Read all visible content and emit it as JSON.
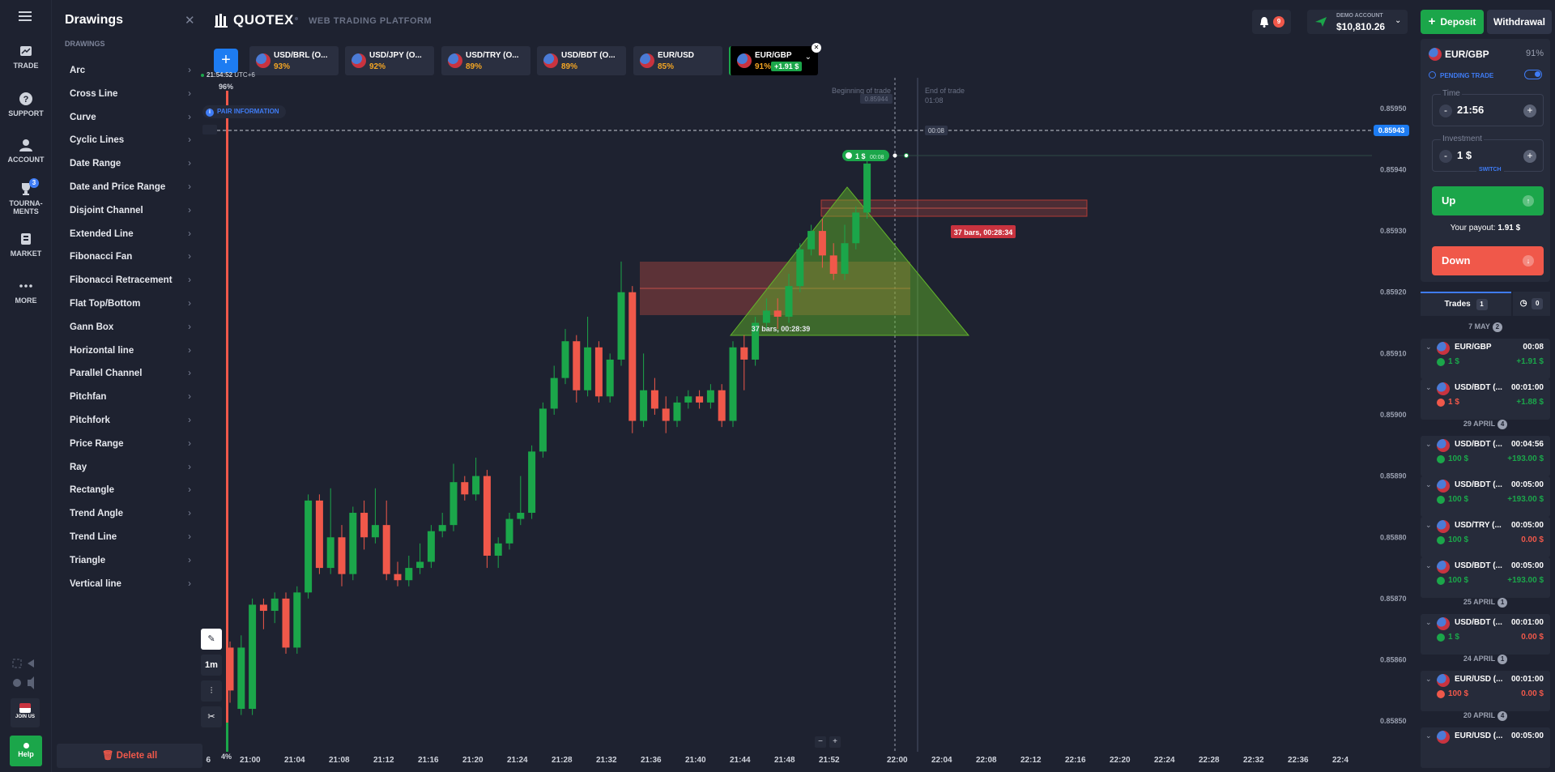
{
  "nav": {
    "trade": "TRADE",
    "support": "SUPPORT",
    "account": "ACCOUNT",
    "tournaments": "TOURNA-\nMENTS",
    "tournaments_badge": "3",
    "market": "MARKET",
    "more": "MORE",
    "join_us": "JOIN US",
    "help": "Help"
  },
  "drawings": {
    "title": "Drawings",
    "subtitle": "Drawings",
    "tools": [
      "Arc",
      "Cross Line",
      "Curve",
      "Cyclic Lines",
      "Date Range",
      "Date and Price Range",
      "Disjoint Channel",
      "Extended Line",
      "Fibonacci Fan",
      "Fibonacci Retracement",
      "Flat Top/Bottom",
      "Gann Box",
      "Horizontal line",
      "Parallel Channel",
      "Pitchfan",
      "Pitchfork",
      "Price Range",
      "Ray",
      "Rectangle",
      "Trend Angle",
      "Trend Line",
      "Triangle",
      "Vertical line"
    ],
    "delete_all": "Delete all"
  },
  "topbar": {
    "logo": "QUOTEX",
    "logo_sub": "WEB TRADING PLATFORM",
    "notifications": "9",
    "account_label": "DEMO ACCOUNT",
    "balance": "$10,810.26",
    "deposit": "Deposit",
    "withdrawal": "Withdrawal"
  },
  "assets": [
    {
      "name": "USD/BRL (O...",
      "pct": "93%"
    },
    {
      "name": "USD/JPY (O...",
      "pct": "92%"
    },
    {
      "name": "USD/TRY (O...",
      "pct": "89%"
    },
    {
      "name": "USD/BDT (O...",
      "pct": "89%"
    },
    {
      "name": "EUR/USD",
      "pct": "85%"
    },
    {
      "name": "EUR/GBP",
      "pct": "91%",
      "gain": "+1.91 $"
    }
  ],
  "chart_info": {
    "clock": "21:54:52",
    "tz": "UTC+6",
    "pair_info": "PAIR INFORMATION",
    "sentiment_top": "96%",
    "sentiment_bottom": "4%",
    "beginning": "Beginning of trade",
    "end": "End of trade",
    "end_time": "01:08",
    "current_price": "0.85943",
    "ghost_price": "0.85944",
    "timer": "00:08",
    "trade_chip": "1 $",
    "trade_chip_time": "00:08",
    "range_label_red": "37 bars, 00:28:34",
    "range_label_green": "37 bars, 00:28:39",
    "timeframe": "1m",
    "zoom_out": "−",
    "zoom_in": "+"
  },
  "chart_data": {
    "type": "candlestick",
    "y_ticks": [
      "0.85950",
      "0.85940",
      "0.85930",
      "0.85920",
      "0.85910",
      "0.85900",
      "0.85890",
      "0.85880",
      "0.85870",
      "0.85860",
      "0.85850"
    ],
    "x_ticks": [
      "56",
      "21:00",
      "21:04",
      "21:08",
      "21:12",
      "21:16",
      "21:20",
      "21:24",
      "21:28",
      "21:32",
      "21:36",
      "21:40",
      "21:44",
      "21:48",
      "21:52",
      "22:00",
      "22:04",
      "22:08",
      "22:12",
      "22:16",
      "22:20",
      "22:24",
      "22:28",
      "22:32",
      "22:36",
      "22:4"
    ],
    "ylim": [
      0.85845,
      0.85955
    ],
    "candles": [
      [
        0.85855,
        0.85862,
        0.85853,
        0.85863,
        0
      ],
      [
        0.85862,
        0.85852,
        0.85851,
        0.85864,
        1
      ],
      [
        0.85852,
        0.85869,
        0.85851,
        0.8587,
        1
      ],
      [
        0.85869,
        0.85868,
        0.85865,
        0.8587,
        0
      ],
      [
        0.85868,
        0.8587,
        0.85866,
        0.85871,
        1
      ],
      [
        0.8587,
        0.85862,
        0.85861,
        0.85871,
        0
      ],
      [
        0.85862,
        0.85871,
        0.85861,
        0.85872,
        1
      ],
      [
        0.85871,
        0.85886,
        0.8587,
        0.85887,
        1
      ],
      [
        0.85886,
        0.85875,
        0.85874,
        0.85887,
        0
      ],
      [
        0.85875,
        0.8588,
        0.85874,
        0.85888,
        1
      ],
      [
        0.8588,
        0.85874,
        0.85872,
        0.85882,
        0
      ],
      [
        0.85874,
        0.85884,
        0.85873,
        0.85885,
        1
      ],
      [
        0.85884,
        0.8588,
        0.85878,
        0.85886,
        0
      ],
      [
        0.8588,
        0.85882,
        0.85879,
        0.85888,
        1
      ],
      [
        0.85882,
        0.85874,
        0.85873,
        0.85886,
        0
      ],
      [
        0.85874,
        0.85873,
        0.85872,
        0.85876,
        0
      ],
      [
        0.85873,
        0.85875,
        0.85872,
        0.85877,
        1
      ],
      [
        0.85875,
        0.85876,
        0.85874,
        0.85879,
        1
      ],
      [
        0.85876,
        0.85881,
        0.85875,
        0.85882,
        1
      ],
      [
        0.85881,
        0.85882,
        0.8588,
        0.85884,
        1
      ],
      [
        0.85882,
        0.85889,
        0.85881,
        0.85892,
        1
      ],
      [
        0.85889,
        0.85887,
        0.85886,
        0.8589,
        0
      ],
      [
        0.85887,
        0.8589,
        0.85886,
        0.85893,
        1
      ],
      [
        0.8589,
        0.85877,
        0.85875,
        0.85891,
        0
      ],
      [
        0.85877,
        0.85879,
        0.85875,
        0.8588,
        1
      ],
      [
        0.85879,
        0.85883,
        0.85878,
        0.85884,
        1
      ],
      [
        0.85883,
        0.85884,
        0.85882,
        0.8589,
        1
      ],
      [
        0.85884,
        0.85894,
        0.85883,
        0.85895,
        1
      ],
      [
        0.85894,
        0.85901,
        0.85893,
        0.85902,
        1
      ],
      [
        0.85901,
        0.85906,
        0.859,
        0.85908,
        1
      ],
      [
        0.85906,
        0.85912,
        0.85905,
        0.85914,
        1
      ],
      [
        0.85912,
        0.85904,
        0.85902,
        0.85913,
        0
      ],
      [
        0.85904,
        0.85911,
        0.85903,
        0.85916,
        1
      ],
      [
        0.85911,
        0.85903,
        0.85902,
        0.85912,
        0
      ],
      [
        0.85903,
        0.85909,
        0.85902,
        0.8591,
        1
      ],
      [
        0.85909,
        0.8592,
        0.85908,
        0.85925,
        1
      ],
      [
        0.8592,
        0.85899,
        0.85897,
        0.85921,
        0
      ],
      [
        0.85899,
        0.85904,
        0.85898,
        0.8591,
        1
      ],
      [
        0.85904,
        0.85901,
        0.859,
        0.85906,
        0
      ],
      [
        0.85901,
        0.85899,
        0.85897,
        0.85903,
        0
      ],
      [
        0.85899,
        0.85902,
        0.85898,
        0.85903,
        1
      ],
      [
        0.85902,
        0.85903,
        0.85901,
        0.85904,
        1
      ],
      [
        0.85903,
        0.85902,
        0.85901,
        0.85904,
        0
      ],
      [
        0.85902,
        0.85904,
        0.85901,
        0.85905,
        1
      ],
      [
        0.85904,
        0.85899,
        0.85898,
        0.85905,
        0
      ],
      [
        0.85899,
        0.85911,
        0.85898,
        0.85912,
        1
      ],
      [
        0.85911,
        0.85909,
        0.85904,
        0.85913,
        0
      ],
      [
        0.85909,
        0.85915,
        0.85908,
        0.85916,
        1
      ],
      [
        0.85915,
        0.85917,
        0.85914,
        0.85919,
        1
      ],
      [
        0.85917,
        0.85916,
        0.85914,
        0.85919,
        0
      ],
      [
        0.85916,
        0.85921,
        0.85915,
        0.85923,
        1
      ],
      [
        0.85921,
        0.85927,
        0.8592,
        0.85928,
        1
      ],
      [
        0.85927,
        0.8593,
        0.85926,
        0.85931,
        1
      ],
      [
        0.8593,
        0.85926,
        0.85924,
        0.85932,
        0
      ],
      [
        0.85926,
        0.85923,
        0.85922,
        0.85928,
        0
      ],
      [
        0.85923,
        0.85928,
        0.85922,
        0.85931,
        1
      ],
      [
        0.85928,
        0.85933,
        0.85927,
        0.85934,
        1
      ],
      [
        0.85933,
        0.85941,
        0.85932,
        0.85942,
        1
      ]
    ]
  },
  "side": {
    "pair": "EUR/GBP",
    "pair_pct": "91%",
    "pending": "PENDING TRADE",
    "time_label": "Time",
    "time_value": "21:56",
    "investment_label": "Investment",
    "investment_value": "1 $",
    "switch": "SWITCH",
    "up": "Up",
    "payout_label": "Your payout:",
    "payout_value": "1.91 $",
    "down": "Down",
    "trades_tab": "Trades",
    "trades_count": "1",
    "history_count": "0"
  },
  "trades": [
    {
      "type": "date",
      "label": "7 MAY",
      "count": "2"
    },
    {
      "type": "trade",
      "pair": "EUR/GBP",
      "dur": "00:08",
      "inv": "1 $",
      "pay": "+1.91 $",
      "dir": "up",
      "paycolor": "green"
    },
    {
      "type": "trade",
      "pair": "USD/BDT (...",
      "dur": "00:01:00",
      "inv": "1 $",
      "pay": "+1.88 $",
      "dir": "down",
      "paycolor": "green"
    },
    {
      "type": "date",
      "label": "29 APRIL",
      "count": "4"
    },
    {
      "type": "trade",
      "pair": "USD/BDT (...",
      "dur": "00:04:56",
      "inv": "100 $",
      "pay": "+193.00 $",
      "dir": "up",
      "paycolor": "green"
    },
    {
      "type": "trade",
      "pair": "USD/BDT (...",
      "dur": "00:05:00",
      "inv": "100 $",
      "pay": "+193.00 $",
      "dir": "up",
      "paycolor": "green"
    },
    {
      "type": "trade",
      "pair": "USD/TRY (...",
      "dur": "00:05:00",
      "inv": "100 $",
      "pay": "0.00 $",
      "dir": "up",
      "paycolor": "red"
    },
    {
      "type": "trade",
      "pair": "USD/BDT (...",
      "dur": "00:05:00",
      "inv": "100 $",
      "pay": "+193.00 $",
      "dir": "up",
      "paycolor": "green"
    },
    {
      "type": "date",
      "label": "25 APRIL",
      "count": "1"
    },
    {
      "type": "trade",
      "pair": "USD/BDT (...",
      "dur": "00:01:00",
      "inv": "1 $",
      "pay": "0.00 $",
      "dir": "up",
      "paycolor": "red"
    },
    {
      "type": "date",
      "label": "24 APRIL",
      "count": "1"
    },
    {
      "type": "trade",
      "pair": "EUR/USD (...",
      "dur": "00:01:00",
      "inv": "100 $",
      "pay": "0.00 $",
      "dir": "down",
      "paycolor": "red"
    },
    {
      "type": "date",
      "label": "20 APRIL",
      "count": "4"
    },
    {
      "type": "trade",
      "pair": "EUR/USD (...",
      "dur": "00:05:00",
      "inv": "",
      "pay": "",
      "dir": "up",
      "paycolor": "green"
    }
  ],
  "colors": {
    "up": "#1ba64a",
    "down": "#f0584a",
    "accent": "#1d7cf2",
    "bg": "#1e2230"
  }
}
